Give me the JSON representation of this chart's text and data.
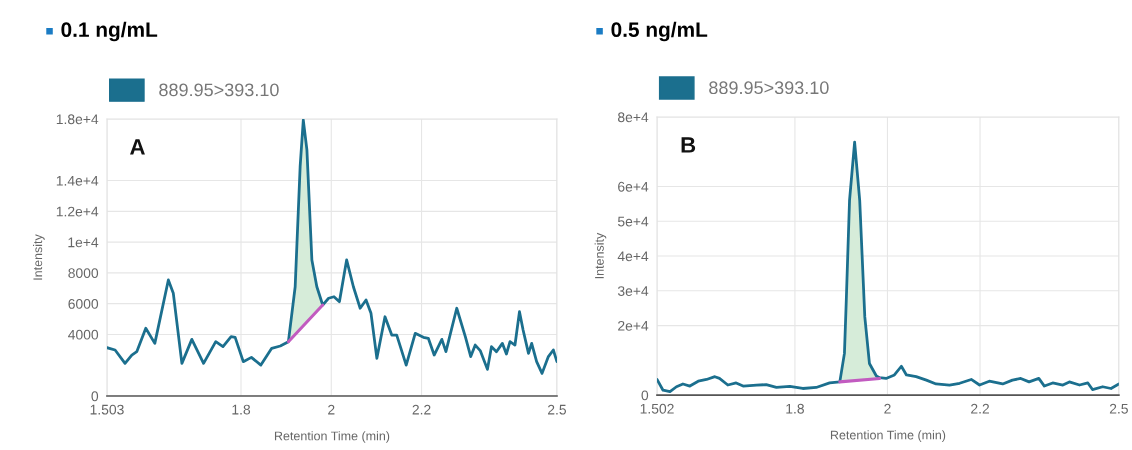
{
  "chart_data": [
    {
      "type": "line",
      "title": "0.1 ng/mL",
      "xlabel": "Retention Time (min)",
      "ylabel": "Intensity",
      "annotations": [
        "A"
      ],
      "grid": true,
      "legend": "top left",
      "xlim": [
        1.503,
        2.5
      ],
      "xticks": [
        1.503,
        1.8,
        2,
        2.2,
        2.5
      ],
      "ylim": [
        0,
        18000
      ],
      "yticks": [
        0,
        4000,
        6000,
        8000,
        {
          "value": 10000,
          "label": "1e+4"
        },
        {
          "value": 12000,
          "label": "1.2e+4"
        },
        {
          "value": 14000,
          "label": "1.4e+4"
        },
        {
          "value": 18000,
          "label": "1.8e+4"
        }
      ],
      "series": [
        {
          "name": "889.95>393.10",
          "color": "#1b6f8e",
          "x": [
            1.503,
            1.521,
            1.543,
            1.558,
            1.569,
            1.589,
            1.609,
            1.639,
            1.65,
            1.669,
            1.691,
            1.717,
            1.744,
            1.76,
            1.778,
            1.787,
            1.805,
            1.823,
            1.844,
            1.868,
            1.887,
            1.905,
            1.92,
            1.931,
            1.938,
            1.946,
            1.957,
            1.968,
            1.981,
            1.994,
            2.006,
            2.018,
            2.034,
            2.049,
            2.064,
            2.077,
            2.088,
            2.101,
            2.119,
            2.134,
            2.145,
            2.166,
            2.186,
            2.204,
            2.215,
            2.228,
            2.245,
            2.254,
            2.278,
            2.297,
            2.309,
            2.319,
            2.33,
            2.346,
            2.355,
            2.366,
            2.379,
            2.388,
            2.396,
            2.407,
            2.417,
            2.425,
            2.437,
            2.444,
            2.455,
            2.467,
            2.481,
            2.492,
            2.5
          ],
          "values": [
            3140,
            2990,
            2120,
            2660,
            2880,
            4400,
            3420,
            7540,
            6670,
            2120,
            3680,
            2120,
            3530,
            3210,
            3860,
            3810,
            2230,
            2510,
            2010,
            3100,
            3250,
            3530,
            7100,
            14900,
            17930,
            15990,
            8840,
            7100,
            5910,
            6350,
            6450,
            6130,
            8840,
            7100,
            5700,
            6240,
            5370,
            2450,
            5150,
            3960,
            3960,
            2010,
            4070,
            3810,
            3750,
            2660,
            3680,
            2880,
            5700,
            3860,
            2560,
            3310,
            2950,
            1730,
            3210,
            2880,
            3420,
            2730,
            3530,
            3310,
            5480,
            4290,
            2770,
            3420,
            2230,
            1470,
            2560,
            2990,
            2230
          ]
        },
        {
          "color": "#c25bc0",
          "x": [
            1.905,
            1.981
          ],
          "values": [
            3530,
            5910
          ]
        }
      ]
    },
    {
      "type": "line",
      "title": "0.5 ng/mL",
      "xlabel": "Retention Time (min)",
      "ylabel": "Intensity",
      "annotations": [
        "B"
      ],
      "grid": true,
      "legend": "top left",
      "xlim": [
        1.502,
        2.5
      ],
      "xticks": [
        1.502,
        1.8,
        2,
        2.2,
        2.5
      ],
      "ylim": [
        0,
        80000
      ],
      "yticks": [
        0,
        {
          "value": 20000,
          "label": "2e+4"
        },
        {
          "value": 30000,
          "label": "3e+4"
        },
        {
          "value": 40000,
          "label": "4e+4"
        },
        {
          "value": 50000,
          "label": "5e+4"
        },
        {
          "value": 60000,
          "label": "6e+4"
        },
        {
          "value": 80000,
          "label": "8e+4"
        }
      ],
      "series": [
        {
          "name": "889.95>393.10",
          "color": "#1b6f8e",
          "x": [
            1.502,
            1.515,
            1.53,
            1.544,
            1.558,
            1.573,
            1.591,
            1.609,
            1.627,
            1.637,
            1.655,
            1.673,
            1.688,
            1.717,
            1.738,
            1.76,
            1.789,
            1.817,
            1.846,
            1.875,
            1.897,
            1.907,
            1.911,
            1.918,
            1.929,
            1.94,
            1.951,
            1.961,
            1.976,
            1.983,
            1.997,
            2.015,
            2.03,
            2.041,
            2.062,
            2.084,
            2.105,
            2.134,
            2.156,
            2.181,
            2.199,
            2.22,
            2.249,
            2.27,
            2.288,
            2.306,
            2.327,
            2.339,
            2.357,
            2.379,
            2.393,
            2.415,
            2.433,
            2.443,
            2.465,
            2.483,
            2.5
          ],
          "values": [
            4500,
            1400,
            1000,
            2400,
            3200,
            2600,
            4000,
            4500,
            5300,
            4800,
            2900,
            3500,
            2600,
            2900,
            3000,
            2200,
            2500,
            1900,
            2200,
            3500,
            3800,
            12000,
            27300,
            56000,
            72800,
            56000,
            22500,
            9100,
            5500,
            5000,
            4800,
            5800,
            8300,
            5800,
            5300,
            4300,
            3200,
            2900,
            3400,
            4500,
            2900,
            4000,
            3200,
            4300,
            4800,
            3800,
            4800,
            2600,
            3500,
            2900,
            3800,
            2900,
            3500,
            1600,
            2400,
            1900,
            3200
          ]
        },
        {
          "color": "#c25bc0",
          "x": [
            1.897,
            1.983
          ],
          "values": [
            3800,
            4800
          ]
        }
      ]
    }
  ]
}
